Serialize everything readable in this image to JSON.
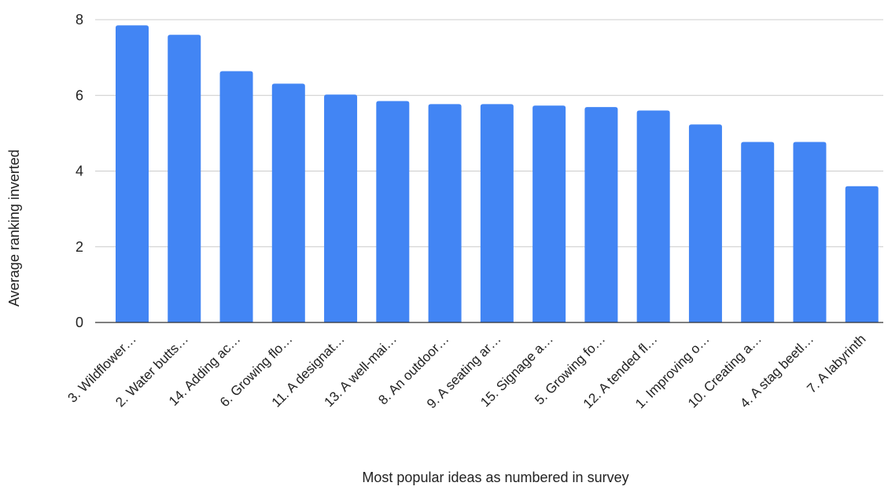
{
  "chart_data": {
    "type": "bar",
    "title": "",
    "xlabel": "Most popular ideas as numbered in survey",
    "ylabel": "Average ranking inverted",
    "ylim": [
      0,
      8
    ],
    "yticks": [
      "0",
      "2",
      "4",
      "6",
      "8"
    ],
    "grid": true,
    "legend": "none",
    "bar_color": "#4285f4",
    "categories": [
      "3. Wildflower…",
      "2. Water butts…",
      "14. Adding ac…",
      "6. Growing flo…",
      "11. A designat…",
      "13. A well-mai…",
      "8. An outdoor…",
      "9. A seating ar…",
      "15. Signage a…",
      "5. Growing fo…",
      "12. A tended fl…",
      "1. Improving o…",
      "10. Creating a…",
      "4. A stag beetl…",
      "7. A labyrinth"
    ],
    "values": [
      7.85,
      7.6,
      6.64,
      6.31,
      6.02,
      5.85,
      5.77,
      5.77,
      5.73,
      5.69,
      5.6,
      5.23,
      4.77,
      4.77,
      3.6
    ]
  }
}
